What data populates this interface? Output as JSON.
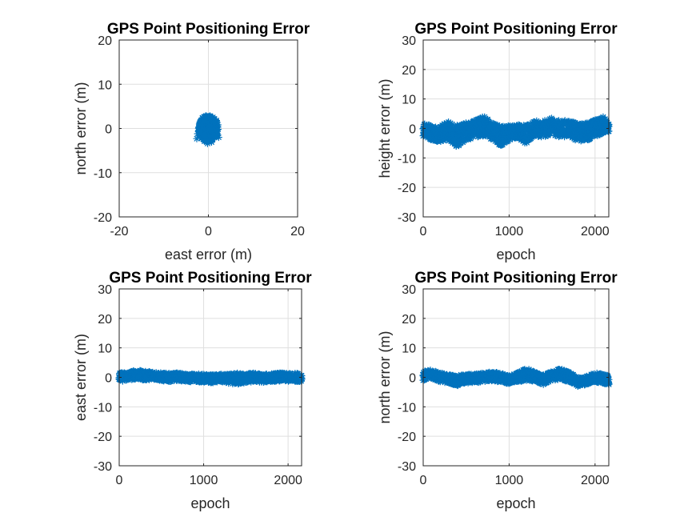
{
  "figure": {
    "background": "#ffffff",
    "marker_color": "#0072bd",
    "marker": "asterisk"
  },
  "chart_data": [
    {
      "type": "scatter",
      "title": "GPS Point Positioning Error",
      "xlabel": "east error (m)",
      "ylabel": "north error (m)",
      "xlim": [
        -20,
        20
      ],
      "ylim": [
        -20,
        20
      ],
      "xticks": [
        -20,
        0,
        20
      ],
      "yticks": [
        -20,
        -10,
        0,
        10,
        20
      ],
      "grid": true,
      "series": [
        {
          "points": [
            [
              -0.6,
              2.8
            ],
            [
              0.4,
              2.6
            ],
            [
              1.1,
              2.1
            ],
            [
              -1.4,
              1.9
            ],
            [
              0.0,
              1.6
            ],
            [
              1.6,
              1.2
            ],
            [
              -2.0,
              1.0
            ],
            [
              -0.8,
              0.9
            ],
            [
              0.9,
              0.7
            ],
            [
              2.1,
              0.3
            ],
            [
              -1.7,
              0.2
            ],
            [
              -0.3,
              0.1
            ],
            [
              0.6,
              -0.2
            ],
            [
              1.5,
              -0.5
            ],
            [
              -2.2,
              -0.6
            ],
            [
              -1.0,
              -0.8
            ],
            [
              0.2,
              -1.0
            ],
            [
              1.9,
              -1.2
            ],
            [
              -1.6,
              -1.5
            ],
            [
              -0.4,
              -1.8
            ],
            [
              1.1,
              -1.9
            ],
            [
              -2.6,
              -2.3
            ],
            [
              0.5,
              -2.5
            ],
            [
              -0.9,
              -2.9
            ],
            [
              0.7,
              -3.1
            ],
            [
              -0.2,
              -3.4
            ],
            [
              2.3,
              -2.0
            ],
            [
              -1.3,
              2.4
            ],
            [
              1.8,
              1.8
            ],
            [
              -2.4,
              -1.2
            ]
          ]
        }
      ]
    },
    {
      "type": "scatter",
      "title": "GPS Point Positioning Error",
      "xlabel": "epoch",
      "ylabel": "height error (m)",
      "xlim": [
        0,
        2160
      ],
      "ylim": [
        -30,
        30
      ],
      "xticks": [
        0,
        1000,
        2000
      ],
      "yticks": [
        -30,
        -20,
        -10,
        0,
        10,
        20,
        30
      ],
      "grid": true,
      "series": [
        {
          "x": [
            0,
            100,
            200,
            300,
            400,
            500,
            600,
            700,
            800,
            900,
            1000,
            1100,
            1200,
            1300,
            1400,
            1500,
            1600,
            1700,
            1800,
            1900,
            2000,
            2100,
            2160
          ],
          "y": [
            0.5,
            -1.5,
            -2.0,
            -1.0,
            -2.5,
            -1.0,
            0.0,
            1.0,
            -1.0,
            -2.0,
            -1.0,
            -0.5,
            -1.5,
            0.0,
            -0.5,
            1.0,
            -0.5,
            0.0,
            -1.5,
            -1.0,
            0.0,
            1.5,
            1.0
          ],
          "band_upper": [
            2.5,
            1.0,
            1.0,
            2.5,
            1.0,
            2.0,
            3.0,
            4.5,
            2.0,
            1.0,
            1.0,
            1.5,
            1.0,
            2.5,
            2.5,
            3.5,
            2.5,
            3.0,
            1.5,
            2.0,
            3.0,
            4.0,
            3.0
          ],
          "band_lower": [
            -2.5,
            -4.0,
            -4.5,
            -4.0,
            -6.5,
            -4.0,
            -3.0,
            -2.5,
            -4.0,
            -6.0,
            -4.0,
            -3.0,
            -5.5,
            -2.5,
            -3.0,
            -2.0,
            -3.0,
            -2.5,
            -4.5,
            -4.0,
            -3.0,
            -1.5,
            -1.0
          ]
        }
      ]
    },
    {
      "type": "scatter",
      "title": "GPS Point Positioning Error",
      "xlabel": "epoch",
      "ylabel": "east error (m)",
      "xlim": [
        0,
        2160
      ],
      "ylim": [
        -30,
        30
      ],
      "xticks": [
        0,
        1000,
        2000
      ],
      "yticks": [
        -30,
        -20,
        -10,
        0,
        10,
        20,
        30
      ],
      "grid": true,
      "series": [
        {
          "x": [
            0,
            100,
            200,
            300,
            400,
            500,
            600,
            700,
            800,
            900,
            1000,
            1100,
            1200,
            1300,
            1400,
            1500,
            1600,
            1700,
            1800,
            1900,
            2000,
            2100,
            2160
          ],
          "y": [
            0.0,
            0.5,
            1.0,
            0.5,
            0.8,
            0.2,
            0.0,
            0.3,
            -0.2,
            0.0,
            -0.3,
            -0.5,
            -0.2,
            -0.4,
            -0.6,
            -0.2,
            0.0,
            -0.3,
            -0.1,
            0.2,
            0.0,
            0.1,
            0.0
          ],
          "band_upper": [
            1.5,
            1.8,
            2.5,
            2.0,
            2.0,
            1.5,
            1.3,
            1.5,
            1.0,
            1.2,
            1.0,
            0.8,
            1.0,
            1.0,
            1.5,
            1.2,
            1.5,
            1.0,
            1.2,
            1.5,
            1.3,
            1.4,
            1.3
          ],
          "band_lower": [
            -1.5,
            -1.0,
            -0.5,
            -1.0,
            -0.6,
            -1.2,
            -1.4,
            -1.0,
            -1.5,
            -1.4,
            -1.7,
            -1.8,
            -1.6,
            -2.0,
            -2.5,
            -1.8,
            -1.5,
            -1.7,
            -1.4,
            -1.2,
            -1.4,
            -1.3,
            -1.4
          ]
        }
      ]
    },
    {
      "type": "scatter",
      "title": "GPS Point Positioning Error",
      "xlabel": "epoch",
      "ylabel": "north error (m)",
      "xlim": [
        0,
        2160
      ],
      "ylim": [
        -30,
        30
      ],
      "xticks": [
        0,
        1000,
        2000
      ],
      "yticks": [
        -30,
        -20,
        -10,
        0,
        10,
        20,
        30
      ],
      "grid": true,
      "series": [
        {
          "x": [
            0,
            100,
            200,
            300,
            400,
            500,
            600,
            700,
            800,
            900,
            1000,
            1100,
            1200,
            1300,
            1400,
            1500,
            1600,
            1700,
            1800,
            1900,
            2000,
            2100,
            2160
          ],
          "y": [
            0.5,
            1.0,
            0.0,
            -0.5,
            -1.0,
            -0.5,
            -0.3,
            0.0,
            0.3,
            0.0,
            -0.8,
            0.0,
            1.0,
            0.0,
            -0.8,
            0.5,
            1.0,
            0.0,
            -1.5,
            -1.0,
            0.0,
            -0.5,
            -1.0
          ],
          "band_upper": [
            2.0,
            2.5,
            1.5,
            1.0,
            0.5,
            1.0,
            1.2,
            1.5,
            1.8,
            1.5,
            0.5,
            1.5,
            3.0,
            1.8,
            0.8,
            2.0,
            3.0,
            1.8,
            0.0,
            0.5,
            1.5,
            1.0,
            0.5
          ],
          "band_lower": [
            -1.0,
            -0.5,
            -1.5,
            -2.0,
            -2.8,
            -2.0,
            -1.8,
            -1.5,
            -1.2,
            -1.5,
            -2.3,
            -1.5,
            -1.0,
            -1.5,
            -2.5,
            -1.0,
            -0.8,
            -1.5,
            -3.0,
            -2.5,
            -1.5,
            -2.0,
            -2.5
          ]
        }
      ]
    }
  ]
}
